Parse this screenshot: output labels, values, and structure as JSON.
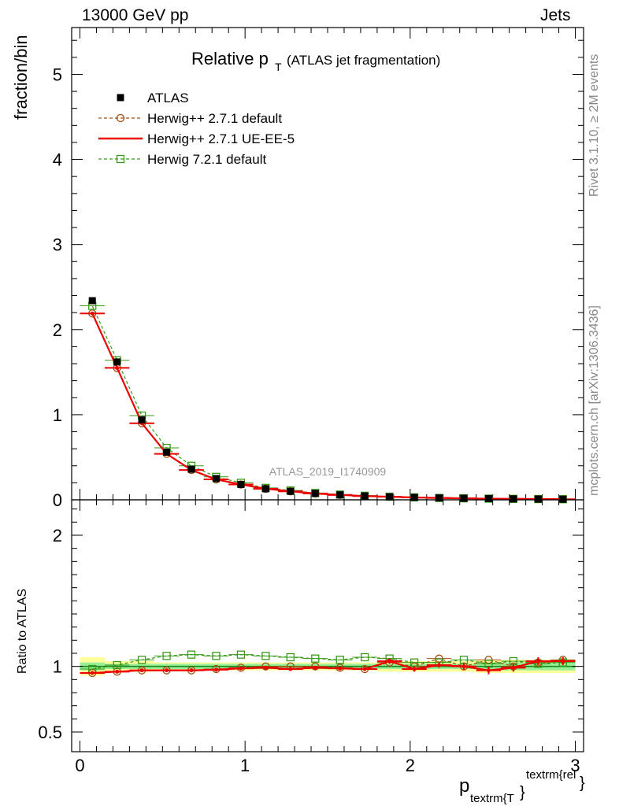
{
  "header": {
    "left": "13000 GeV pp",
    "right": "Jets"
  },
  "side_text": {
    "rivet": "Rivet 3.1.10, ≥ 2M events",
    "mcplots": "mcplots.cern.ch [arXiv:1306.3436]"
  },
  "watermark": "ATLAS_2019_I1740909",
  "chart_data": [
    {
      "type": "line",
      "panel": "main",
      "title_main": "Relative p",
      "title_sub": "T",
      "title_rest": "(ATLAS jet fragmentation)",
      "ylabel": "fraction/bin",
      "xlim": [
        -0.05,
        3.05
      ],
      "ylim": [
        0,
        5.55
      ],
      "yticks": [
        0,
        1,
        2,
        3,
        4,
        5
      ],
      "legend_position": "top-left",
      "x": [
        0.075,
        0.225,
        0.375,
        0.525,
        0.675,
        0.825,
        0.975,
        1.125,
        1.275,
        1.425,
        1.575,
        1.725,
        1.875,
        2.025,
        2.175,
        2.325,
        2.475,
        2.625,
        2.775,
        2.925
      ],
      "series": [
        {
          "name": "ATLAS",
          "color": "#000000",
          "style": "data",
          "values": [
            2.34,
            1.62,
            0.94,
            0.56,
            0.36,
            0.25,
            0.18,
            0.13,
            0.1,
            0.075,
            0.058,
            0.045,
            0.035,
            0.028,
            0.022,
            0.018,
            0.014,
            0.011,
            0.009,
            0.007
          ]
        },
        {
          "name": "Herwig++ 2.7.1 default",
          "color": "#a0500a",
          "style": "circle-dashed",
          "values": [
            2.19,
            1.55,
            0.9,
            0.54,
            0.35,
            0.24,
            0.18,
            0.13,
            0.1,
            0.074,
            0.057,
            0.044,
            0.036,
            0.028,
            0.023,
            0.018,
            0.015,
            0.011,
            0.009,
            0.007
          ]
        },
        {
          "name": "Herwig++ 2.7.1 UE-EE-5",
          "color": "#ee0000",
          "style": "solid",
          "values": [
            2.19,
            1.55,
            0.9,
            0.54,
            0.35,
            0.24,
            0.18,
            0.13,
            0.1,
            0.074,
            0.057,
            0.044,
            0.036,
            0.028,
            0.022,
            0.018,
            0.013,
            0.011,
            0.009,
            0.007
          ]
        },
        {
          "name": "Herwig 7.2.1 default",
          "color": "#3a9a1a",
          "style": "square-dashed",
          "values": [
            2.28,
            1.64,
            0.99,
            0.61,
            0.4,
            0.27,
            0.2,
            0.14,
            0.11,
            0.08,
            0.062,
            0.048,
            0.037,
            0.029,
            0.022,
            0.018,
            0.014,
            0.011,
            0.009,
            0.007
          ]
        }
      ]
    },
    {
      "type": "line",
      "panel": "ratio",
      "ylabel": "Ratio to ATLAS",
      "xlabel_main": "p",
      "xlabel_sub": "textrm{T",
      "xlabel_sub_close": "}",
      "xlabel_sup": "textrm{rel",
      "xlabel_sup_close": "}",
      "xlim": [
        -0.05,
        3.05
      ],
      "ylim": [
        0.35,
        2.27
      ],
      "xticks": [
        0,
        1,
        2,
        3
      ],
      "yticks": [
        0.5,
        1,
        2
      ],
      "x": [
        0.075,
        0.225,
        0.375,
        0.525,
        0.675,
        0.825,
        0.975,
        1.125,
        1.275,
        1.425,
        1.575,
        1.725,
        1.875,
        2.025,
        2.175,
        2.325,
        2.475,
        2.625,
        2.775,
        2.925
      ],
      "band_stat": [
        0.03,
        0.02,
        0.02,
        0.02,
        0.02,
        0.02,
        0.02,
        0.02,
        0.02,
        0.02,
        0.02,
        0.02,
        0.02,
        0.02,
        0.02,
        0.02,
        0.03,
        0.03,
        0.03,
        0.03
      ],
      "band_total": [
        0.07,
        0.04,
        0.04,
        0.03,
        0.03,
        0.03,
        0.03,
        0.03,
        0.03,
        0.03,
        0.03,
        0.03,
        0.04,
        0.04,
        0.04,
        0.04,
        0.05,
        0.05,
        0.05,
        0.05
      ],
      "series": [
        {
          "name": "Herwig++ 2.7.1 default",
          "color": "#a0500a",
          "style": "circle-dashed",
          "values": [
            0.95,
            0.96,
            0.97,
            0.97,
            0.97,
            0.98,
            0.99,
            1.0,
            1.0,
            1.0,
            0.99,
            0.98,
            1.03,
            1.0,
            1.06,
            1.0,
            1.05,
            1.0,
            1.03,
            1.05
          ]
        },
        {
          "name": "Herwig++ 2.7.1 UE-EE-5",
          "color": "#ee0000",
          "style": "solid",
          "values": [
            0.95,
            0.96,
            0.97,
            0.97,
            0.97,
            0.975,
            0.985,
            0.99,
            0.98,
            0.99,
            0.985,
            0.98,
            1.04,
            0.98,
            1.01,
            1.0,
            0.97,
            0.99,
            1.04,
            1.04
          ],
          "errors": [
            0.005,
            0.005,
            0.005,
            0.005,
            0.005,
            0.008,
            0.008,
            0.01,
            0.012,
            0.012,
            0.015,
            0.015,
            0.02,
            0.02,
            0.02,
            0.025,
            0.03,
            0.03,
            0.03,
            0.03
          ]
        },
        {
          "name": "Herwig 7.2.1 default",
          "color": "#3a9a1a",
          "style": "square-dashed",
          "values": [
            0.98,
            1.01,
            1.05,
            1.08,
            1.09,
            1.08,
            1.09,
            1.08,
            1.07,
            1.06,
            1.05,
            1.07,
            1.06,
            1.03,
            1.03,
            1.05,
            1.02,
            1.04,
            1.02,
            1.03
          ]
        }
      ]
    }
  ]
}
